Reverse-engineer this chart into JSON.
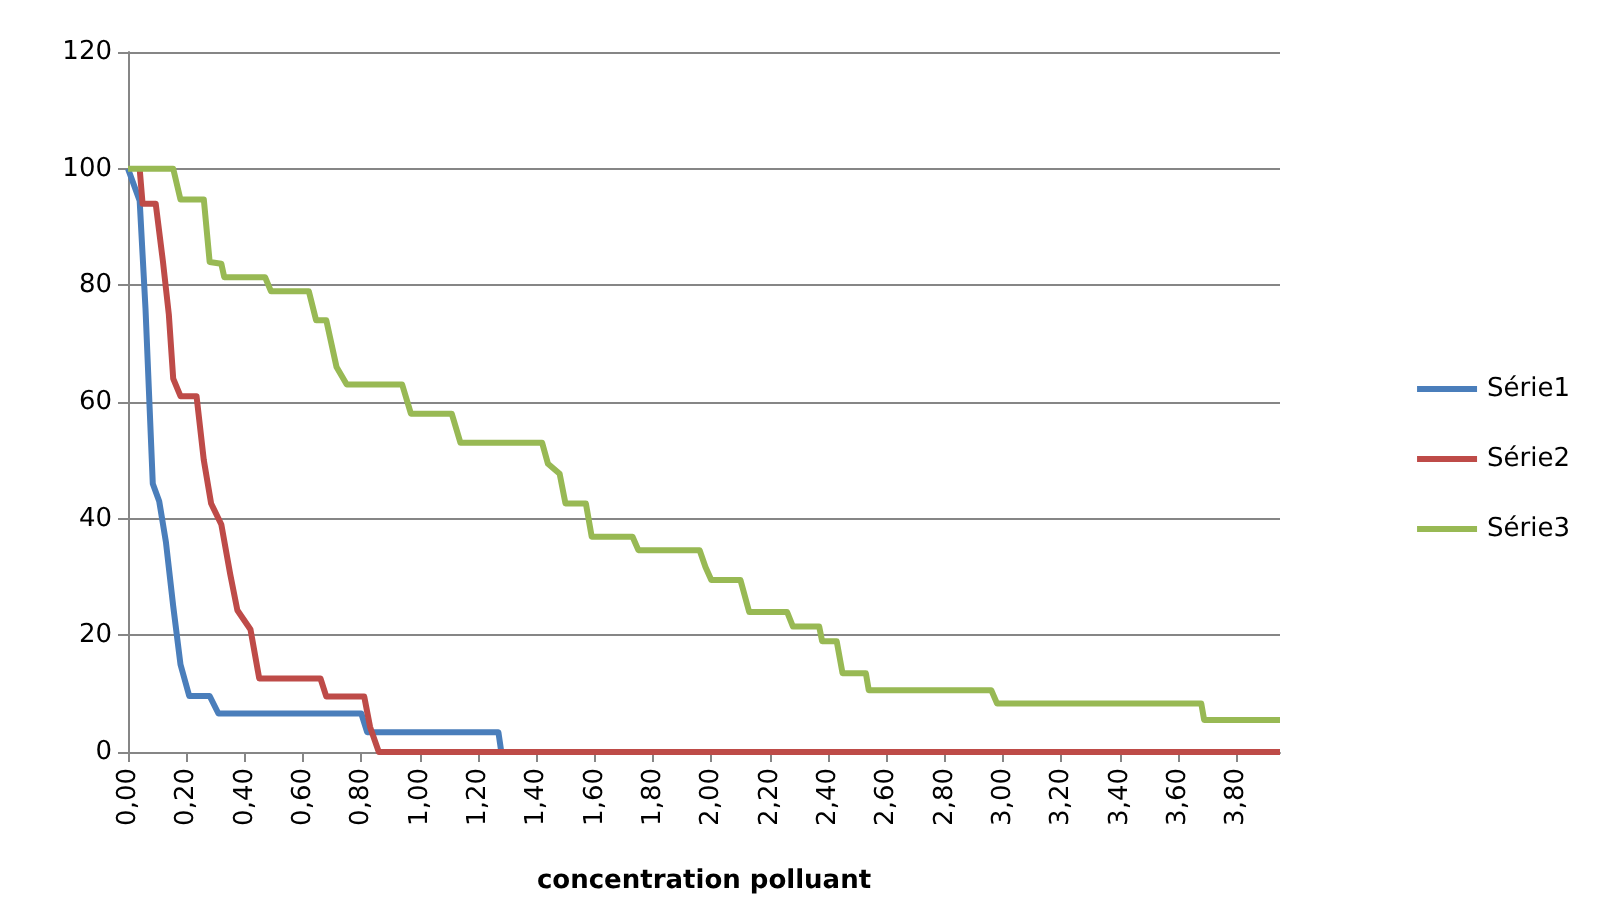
{
  "chart_data": {
    "type": "line",
    "xlabel": "concentration polluant",
    "xlim": [
      0,
      3.95
    ],
    "ylim": [
      0,
      120
    ],
    "yticks": [
      0,
      20,
      40,
      60,
      80,
      100,
      120
    ],
    "xticks": [
      {
        "value": 0,
        "label": "0,00"
      },
      {
        "value": 0.2,
        "label": "0,20"
      },
      {
        "value": 0.4,
        "label": "0,40"
      },
      {
        "value": 0.6,
        "label": "0,60"
      },
      {
        "value": 0.8,
        "label": "0,80"
      },
      {
        "value": 1,
        "label": "1,00"
      },
      {
        "value": 1.2,
        "label": "1,20"
      },
      {
        "value": 1.4,
        "label": "1,40"
      },
      {
        "value": 1.6,
        "label": "1,60"
      },
      {
        "value": 1.8,
        "label": "1,80"
      },
      {
        "value": 2,
        "label": "2,00"
      },
      {
        "value": 2.2,
        "label": "2,20"
      },
      {
        "value": 2.4,
        "label": "2,40"
      },
      {
        "value": 2.6,
        "label": "2,60"
      },
      {
        "value": 2.8,
        "label": "2,80"
      },
      {
        "value": 3,
        "label": "3,00"
      },
      {
        "value": 3.2,
        "label": "3,20"
      },
      {
        "value": 3.4,
        "label": "3,40"
      },
      {
        "value": 3.6,
        "label": "3,60"
      },
      {
        "value": 3.8,
        "label": "3,80"
      }
    ],
    "grid": "y",
    "legend": "right",
    "marker": "none",
    "line_style": "solid",
    "series": [
      {
        "name": "Série1",
        "color": "#4a7ebb",
        "x": [
          0,
          0.04,
          0.06,
          0.085,
          0.107,
          0.13,
          0.155,
          0.18,
          0.21,
          0.28,
          0.31,
          0.8,
          0.82,
          1.27,
          1.28,
          3.95
        ],
        "values": [
          100,
          94.5,
          76,
          46,
          43,
          36,
          25,
          15,
          9.6,
          9.6,
          6.6,
          6.6,
          3.4,
          3.4,
          0,
          0
        ]
      },
      {
        "name": "Série2",
        "color": "#be4b48",
        "x": [
          0.04,
          0.05,
          0.095,
          0.12,
          0.14,
          0.155,
          0.18,
          0.235,
          0.26,
          0.285,
          0.32,
          0.35,
          0.375,
          0.42,
          0.45,
          0.66,
          0.68,
          0.81,
          0.83,
          0.86,
          3.95
        ],
        "values": [
          100,
          94,
          94,
          84,
          75,
          64,
          61,
          61,
          50,
          42.6,
          39,
          30.6,
          24.3,
          21,
          12.6,
          12.6,
          9.5,
          9.5,
          4.3,
          0,
          0
        ]
      },
      {
        "name": "Série3",
        "color": "#98b954",
        "x": [
          0,
          0.155,
          0.18,
          0.26,
          0.28,
          0.32,
          0.33,
          0.47,
          0.49,
          0.62,
          0.645,
          0.68,
          0.715,
          0.75,
          0.94,
          0.97,
          1.11,
          1.14,
          1.42,
          1.44,
          1.48,
          1.5,
          1.57,
          1.59,
          1.73,
          1.75,
          1.96,
          1.98,
          2,
          2.1,
          2.13,
          2.26,
          2.28,
          2.37,
          2.38,
          2.43,
          2.45,
          2.53,
          2.54,
          2.96,
          2.98,
          3.68,
          3.69,
          3.95
        ],
        "values": [
          100,
          100,
          94.7,
          94.7,
          84,
          83.7,
          81.4,
          81.4,
          79,
          79,
          74,
          74,
          66,
          63,
          63,
          58,
          58,
          53,
          53,
          49.4,
          47.7,
          42.6,
          42.6,
          36.9,
          36.9,
          34.6,
          34.6,
          31.7,
          29.5,
          29.5,
          24,
          24,
          21.5,
          21.5,
          19,
          19,
          13.5,
          13.5,
          10.6,
          10.6,
          8.3,
          8.3,
          5.5,
          5.5
        ]
      }
    ]
  }
}
